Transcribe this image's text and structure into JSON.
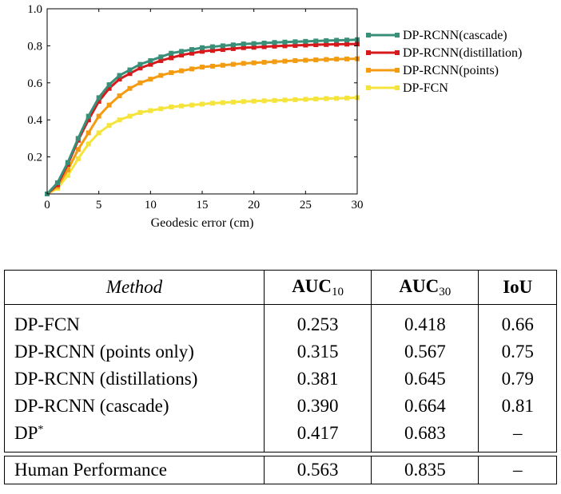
{
  "chart_data": {
    "type": "line",
    "title": "",
    "xlabel": "Geodesic error (cm)",
    "ylabel": "",
    "xlim": [
      0,
      30
    ],
    "ylim": [
      0,
      1.0
    ],
    "xticks": [
      0,
      5,
      10,
      15,
      20,
      25,
      30
    ],
    "yticks": [
      0.2,
      0.4,
      0.6,
      0.8,
      1.0
    ],
    "ytick_labels": [
      "0.2",
      "0.4",
      "0.6",
      "0.8",
      "1.0"
    ],
    "grid": false,
    "legend_position": "right",
    "x": [
      0,
      1,
      2,
      3,
      4,
      5,
      6,
      7,
      8,
      9,
      10,
      11,
      12,
      13,
      14,
      15,
      16,
      17,
      18,
      19,
      20,
      21,
      22,
      23,
      24,
      25,
      26,
      27,
      28,
      29,
      30
    ],
    "series": [
      {
        "name": "DP-RCNN(cascade)",
        "color": "#3a8f78",
        "values": [
          0.0,
          0.06,
          0.17,
          0.3,
          0.42,
          0.52,
          0.59,
          0.64,
          0.67,
          0.7,
          0.72,
          0.74,
          0.76,
          0.77,
          0.78,
          0.79,
          0.795,
          0.8,
          0.805,
          0.81,
          0.812,
          0.815,
          0.818,
          0.82,
          0.822,
          0.824,
          0.826,
          0.828,
          0.83,
          0.831,
          0.833
        ]
      },
      {
        "name": "DP-RCNN(distillation)",
        "color": "#d7191c",
        "values": [
          0.0,
          0.05,
          0.16,
          0.29,
          0.4,
          0.5,
          0.57,
          0.62,
          0.65,
          0.68,
          0.7,
          0.72,
          0.735,
          0.75,
          0.76,
          0.77,
          0.775,
          0.78,
          0.785,
          0.79,
          0.792,
          0.795,
          0.798,
          0.8,
          0.802,
          0.804,
          0.806,
          0.807,
          0.808,
          0.809,
          0.81
        ]
      },
      {
        "name": "DP-RCNN(points)",
        "color": "#f39c12",
        "values": [
          0.0,
          0.04,
          0.13,
          0.24,
          0.33,
          0.42,
          0.48,
          0.53,
          0.57,
          0.6,
          0.62,
          0.64,
          0.655,
          0.665,
          0.675,
          0.685,
          0.69,
          0.695,
          0.7,
          0.705,
          0.708,
          0.711,
          0.714,
          0.717,
          0.72,
          0.722,
          0.724,
          0.726,
          0.728,
          0.729,
          0.73
        ]
      },
      {
        "name": "DP-FCN",
        "color": "#f4e43c",
        "values": [
          0.0,
          0.03,
          0.1,
          0.19,
          0.27,
          0.33,
          0.37,
          0.4,
          0.42,
          0.44,
          0.45,
          0.46,
          0.47,
          0.475,
          0.48,
          0.485,
          0.49,
          0.493,
          0.496,
          0.499,
          0.501,
          0.503,
          0.505,
          0.507,
          0.509,
          0.511,
          0.513,
          0.515,
          0.516,
          0.518,
          0.52
        ]
      }
    ]
  },
  "table": {
    "headers": {
      "method": "Method",
      "auc10": {
        "main": "AUC",
        "sub": "10"
      },
      "auc30": {
        "main": "AUC",
        "sub": "30"
      },
      "iou": "IoU"
    },
    "rows": [
      {
        "method": "DP-FCN",
        "auc10": "0.253",
        "auc30": "0.418",
        "iou": "0.66"
      },
      {
        "method": "DP-RCNN (points only)",
        "auc10": "0.315",
        "auc30": "0.567",
        "iou": "0.75"
      },
      {
        "method": "DP-RCNN (distillations)",
        "auc10": "0.381",
        "auc30": "0.645",
        "iou": "0.79"
      },
      {
        "method": "DP-RCNN (cascade)",
        "auc10": "0.390",
        "auc30": "0.664",
        "iou": "0.81"
      },
      {
        "method": "DP",
        "method_sup": "*",
        "auc10": "0.417",
        "auc30": "0.683",
        "iou": "–"
      }
    ],
    "human": {
      "method": "Human Performance",
      "auc10": "0.563",
      "auc30": "0.835",
      "iou": "–"
    }
  }
}
